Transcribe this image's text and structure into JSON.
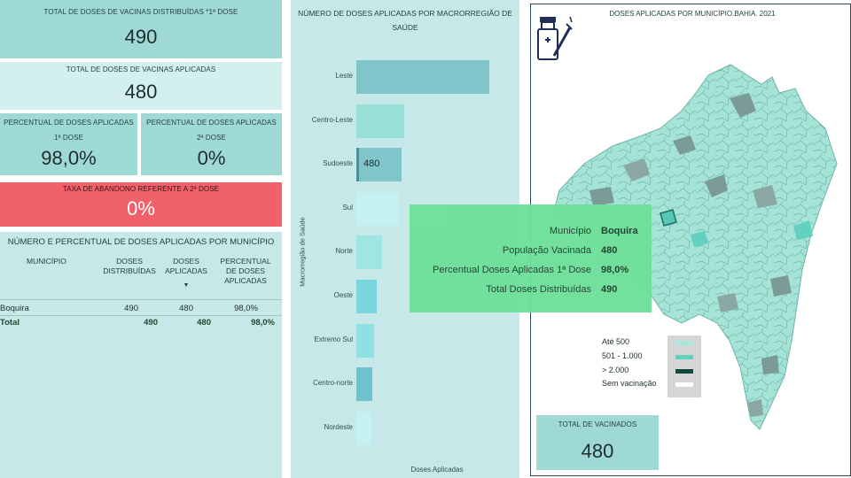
{
  "kpis": {
    "distribuidas": {
      "label": "TOTAL DE DOSES DE VACINAS DISTRIBUÍDAS *1ª DOSE",
      "value": "490"
    },
    "aplicadas": {
      "label": "TOTAL DE DOSES DE VACINAS APLICADAS",
      "value": "480"
    },
    "perc1": {
      "label1": "PERCENTUAL DE DOSES APLICADAS",
      "label2": "1ª DOSE",
      "value": "98,0%"
    },
    "perc2": {
      "label1": "PERCENTUAL DE DOSES APLICADAS",
      "label2": "2ª DOSE",
      "value": "0%"
    },
    "abandono": {
      "label": "TAXA DE ABANDONO REFERENTE A 2ª DOSE",
      "value": "0%"
    }
  },
  "table": {
    "title": "NÚMERO E PERCENTUAL DE DOSES APLICADAS POR MUNICÍPIO",
    "headers": {
      "municipio": "MUNICÍPIO",
      "dist1": "DOSES",
      "dist2": "DISTRIBUÍDAS",
      "apl1": "DOSES",
      "apl2": "APLICADAS",
      "perc1": "PERCENTUAL",
      "perc2": "DE DOSES",
      "perc3": "APLICADAS"
    },
    "sort_indicator": "▼",
    "rows": [
      {
        "municipio": "Boquira",
        "dist": "490",
        "apl": "480",
        "perc": "98,0%"
      }
    ],
    "total": {
      "municipio": "Total",
      "dist": "490",
      "apl": "480",
      "perc": "98,0%"
    }
  },
  "bar_panel": {
    "title1": "NÚMERO DE DOSES APLICADAS POR MACRORREGIÃO DE",
    "title2": "SAÚDE"
  },
  "chart_data": {
    "type": "bar",
    "orientation": "horizontal",
    "title": "NÚMERO DE DOSES APLICADAS POR MACRORREGIÃO DE SAÚDE",
    "xlabel": "Doses Aplicadas",
    "ylabel": "Macrorregião de Saúde",
    "categories": [
      "Leste",
      "Centro-Leste",
      "Sudoeste",
      "Sul",
      "Norte",
      "Oeste",
      "Extremo Sul",
      "Centro-norte",
      "Nordeste"
    ],
    "values": [
      1400,
      500,
      480,
      440,
      270,
      210,
      190,
      170,
      160
    ],
    "data_labels": [
      "",
      "",
      "480",
      "",
      "",
      "",
      "",
      "",
      ""
    ],
    "highlighted": "Sudoeste",
    "colors": [
      "#7fc5c9",
      "#96e0d5",
      "#7fc5c9",
      "#c6f1f2",
      "#9fe6e2",
      "#7ad6de",
      "#8ee0e2",
      "#6fc2cc",
      "#c6f1f2"
    ],
    "grid": false
  },
  "map_panel": {
    "title": "DOSES APLICADAS POR MUNICÍPIO.BAHIA. 2021",
    "icon": "vaccine-icon",
    "tooltip": [
      {
        "key": "Município",
        "value": "Boquira"
      },
      {
        "key": "População Vacinada",
        "value": "480"
      },
      {
        "key": "Percentual Doses Aplicadas 1ª Dose",
        "value": "98,0%"
      },
      {
        "key": "Total Doses Distribuídas",
        "value": "490"
      }
    ],
    "legend": [
      {
        "label": "Até 500",
        "color": "#a9e6dd"
      },
      {
        "label": "501 - 1.000",
        "color": "#62d1bf"
      },
      {
        "label": "> 2.000",
        "color": "#0e4a3e"
      },
      {
        "label": "Sem vacinação",
        "color": "#ffffff"
      }
    ],
    "total_card": {
      "label": "TOTAL DE VACINADOS",
      "value": "480"
    }
  },
  "colors": {
    "kpi_dark": "#9fd9d6",
    "kpi_light": "#d3efee",
    "kpi_alert": "#f0616a",
    "panel_bg": "#c6e8e9",
    "tooltip_bg": "#6fe09a"
  }
}
